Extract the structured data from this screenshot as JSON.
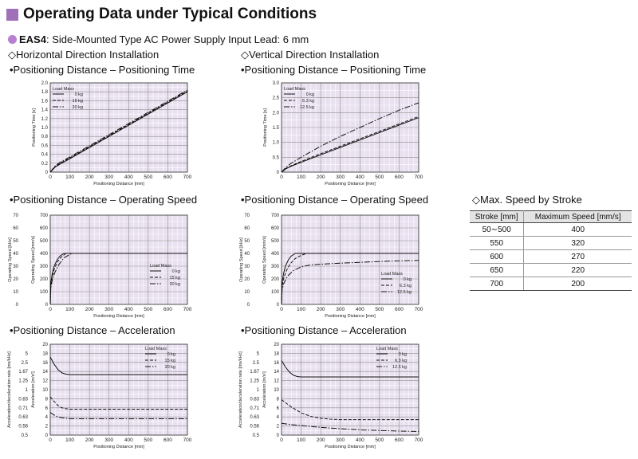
{
  "heading": "Operating Data under Typical Conditions",
  "model": {
    "name": "EAS4",
    "desc": ": Side-Mounted Type  AC Power Supply Input  Lead: 6 mm"
  },
  "sections": {
    "horizontal": "◇Horizontal Direction Installation",
    "vertical": "◇Vertical Direction Installation",
    "maxspeed": "◇Max. Speed by Stroke"
  },
  "subtitles": {
    "time": "•Positioning Distance – Positioning Time",
    "speed": "•Positioning Distance – Operating Speed",
    "accel": "•Positioning Distance – Acceleration"
  },
  "table": {
    "headers": [
      "Stroke [mm]",
      "Maximum Speed [mm/s]"
    ],
    "rows": [
      [
        "50∼500",
        "400"
      ],
      [
        "550",
        "320"
      ],
      [
        "600",
        "270"
      ],
      [
        "650",
        "220"
      ],
      [
        "700",
        "200"
      ]
    ]
  },
  "chart_data": [
    {
      "id": "h-time",
      "type": "line",
      "xlabel": "Positioning Distance [mm]",
      "ylabel": "Positioning Time [s]",
      "xlim": [
        0,
        700
      ],
      "ylim": [
        0,
        2.0
      ],
      "xticks": [
        "0",
        "100",
        "200",
        "300",
        "400",
        "500",
        "600",
        "700"
      ],
      "yticks": [
        "0",
        "0.2",
        "0.4",
        "0.6",
        "0.8",
        "1.0",
        "1.2",
        "1.4",
        "1.6",
        "1.8",
        "2.0"
      ],
      "legend_title": "Load Mass",
      "legend_pos": "top-left",
      "series": [
        {
          "name": "0 kg",
          "style": "solid",
          "x": [
            0,
            25,
            50,
            100,
            200,
            300,
            400,
            500,
            600,
            700
          ],
          "y": [
            0,
            0.11,
            0.18,
            0.3,
            0.55,
            0.8,
            1.05,
            1.3,
            1.55,
            1.8
          ]
        },
        {
          "name": "15 kg",
          "style": "dashed",
          "x": [
            0,
            25,
            50,
            100,
            200,
            300,
            400,
            500,
            600,
            700
          ],
          "y": [
            0,
            0.12,
            0.2,
            0.32,
            0.57,
            0.82,
            1.07,
            1.32,
            1.57,
            1.82
          ]
        },
        {
          "name": "30 kg",
          "style": "dashdot",
          "x": [
            0,
            25,
            50,
            100,
            200,
            300,
            400,
            500,
            600,
            700
          ],
          "y": [
            0,
            0.14,
            0.22,
            0.34,
            0.59,
            0.84,
            1.09,
            1.34,
            1.59,
            1.84
          ]
        }
      ]
    },
    {
      "id": "v-time",
      "type": "line",
      "xlabel": "Positioning Distance [mm]",
      "ylabel": "Positioning Time [s]",
      "xlim": [
        0,
        700
      ],
      "ylim": [
        0,
        3.0
      ],
      "xticks": [
        "0",
        "100",
        "200",
        "300",
        "400",
        "500",
        "600",
        "700"
      ],
      "yticks": [
        "0",
        "0.5",
        "1.0",
        "1.5",
        "2.0",
        "2.5",
        "3.0"
      ],
      "legend_title": "Load Mass",
      "legend_pos": "top-left",
      "series": [
        {
          "name": "0 kg",
          "style": "solid",
          "x": [
            0,
            25,
            50,
            100,
            200,
            300,
            400,
            500,
            600,
            700
          ],
          "y": [
            0,
            0.12,
            0.2,
            0.33,
            0.58,
            0.83,
            1.08,
            1.33,
            1.58,
            1.83
          ]
        },
        {
          "name": "6.3 kg",
          "style": "dashed",
          "x": [
            0,
            25,
            50,
            100,
            200,
            300,
            400,
            500,
            600,
            700
          ],
          "y": [
            0,
            0.13,
            0.22,
            0.36,
            0.62,
            0.87,
            1.12,
            1.37,
            1.62,
            1.87
          ]
        },
        {
          "name": "12.5 kg",
          "style": "dashdot",
          "x": [
            0,
            25,
            50,
            100,
            200,
            300,
            400,
            500,
            600,
            700
          ],
          "y": [
            0,
            0.18,
            0.3,
            0.5,
            0.87,
            1.2,
            1.5,
            1.8,
            2.08,
            2.33
          ]
        }
      ]
    },
    {
      "id": "h-speed",
      "type": "line",
      "xlabel": "Positioning Distance [mm]",
      "ylabel": "Operating Speed [mm/s]",
      "ylabel2": "Operating Speed [kHz]",
      "xlim": [
        0,
        700
      ],
      "ylim": [
        0,
        700
      ],
      "ylim2": [
        0,
        70
      ],
      "xticks": [
        "0",
        "100",
        "200",
        "300",
        "400",
        "500",
        "600",
        "700"
      ],
      "yticks": [
        "0",
        "100",
        "200",
        "300",
        "400",
        "500",
        "600",
        "700"
      ],
      "yticks2": [
        "0",
        "10",
        "20",
        "30",
        "40",
        "50",
        "60",
        "70"
      ],
      "legend_title": "Load Mass",
      "legend_pos": "bottom-right",
      "series": [
        {
          "name": "0 kg",
          "style": "solid",
          "x": [
            0,
            3,
            10,
            20,
            35,
            50,
            70,
            700
          ],
          "y": [
            0,
            170,
            240,
            300,
            350,
            380,
            400,
            400
          ]
        },
        {
          "name": "15 kg",
          "style": "dashed",
          "x": [
            0,
            3,
            10,
            20,
            35,
            55,
            80,
            700
          ],
          "y": [
            0,
            150,
            215,
            275,
            330,
            370,
            400,
            400
          ]
        },
        {
          "name": "30 kg",
          "style": "dashdot",
          "x": [
            0,
            3,
            10,
            25,
            45,
            70,
            110,
            700
          ],
          "y": [
            0,
            130,
            190,
            255,
            315,
            365,
            400,
            400
          ]
        }
      ]
    },
    {
      "id": "v-speed",
      "type": "line",
      "xlabel": "Positioning Distance [mm]",
      "ylabel": "Operating Speed [mm/s]",
      "ylabel2": "Operating Speed [kHz]",
      "xlim": [
        0,
        700
      ],
      "ylim": [
        0,
        700
      ],
      "ylim2": [
        0,
        70
      ],
      "xticks": [
        "0",
        "100",
        "200",
        "300",
        "400",
        "500",
        "600",
        "700"
      ],
      "yticks": [
        "0",
        "100",
        "200",
        "300",
        "400",
        "500",
        "600",
        "700"
      ],
      "yticks2": [
        "0",
        "10",
        "20",
        "30",
        "40",
        "50",
        "60",
        "70"
      ],
      "legend_title": "Load Mass",
      "legend_pos": "bottom-right",
      "series": [
        {
          "name": "0 kg",
          "style": "solid",
          "x": [
            0,
            3,
            10,
            20,
            35,
            50,
            70,
            700
          ],
          "y": [
            0,
            170,
            240,
            300,
            350,
            380,
            400,
            400
          ]
        },
        {
          "name": "6.3 kg",
          "style": "dashed",
          "x": [
            0,
            3,
            10,
            25,
            45,
            70,
            100,
            130,
            700
          ],
          "y": [
            0,
            140,
            200,
            265,
            320,
            360,
            385,
            400,
            400
          ]
        },
        {
          "name": "12.5 kg",
          "style": "dashdot",
          "x": [
            0,
            3,
            10,
            30,
            60,
            100,
            150,
            250,
            400,
            550,
            700
          ],
          "y": [
            0,
            110,
            160,
            220,
            265,
            295,
            310,
            320,
            330,
            340,
            345
          ]
        }
      ]
    },
    {
      "id": "h-accel",
      "type": "line",
      "xlabel": "Positioning Distance [mm]",
      "ylabel": "Acceleration [m/s²]",
      "ylabel2": "Acceleration/deceleration rate [ms/kHz]",
      "xlim": [
        0,
        700
      ],
      "ylim": [
        0,
        20
      ],
      "xticks": [
        "0",
        "100",
        "200",
        "300",
        "400",
        "500",
        "600",
        "700"
      ],
      "yticks": [
        "0",
        "2",
        "4",
        "6",
        "8",
        "10",
        "12",
        "14",
        "16",
        "18",
        "20"
      ],
      "yticks2": [
        "0.5",
        "0.56",
        "0.63",
        "0.71",
        "0.83",
        "1",
        "1.25",
        "1.67",
        "2.5",
        "5",
        ""
      ],
      "legend_title": "Load Mass",
      "legend_pos": "top-right",
      "series": [
        {
          "name": "0 kg",
          "style": "solid",
          "x": [
            0,
            20,
            40,
            60,
            80,
            100,
            700
          ],
          "y": [
            17.2,
            15.6,
            14.4,
            13.7,
            13.4,
            13.3,
            13.3
          ]
        },
        {
          "name": "15 kg",
          "style": "dashed",
          "x": [
            0,
            20,
            40,
            60,
            80,
            100,
            700
          ],
          "y": [
            8.4,
            7.4,
            6.5,
            6.0,
            5.8,
            5.7,
            5.7
          ]
        },
        {
          "name": "30 kg",
          "style": "dashdot",
          "x": [
            0,
            20,
            40,
            60,
            80,
            100,
            700
          ],
          "y": [
            5.0,
            4.4,
            4.0,
            3.8,
            3.7,
            3.6,
            3.6
          ]
        }
      ]
    },
    {
      "id": "v-accel",
      "type": "line",
      "xlabel": "Positioning Distance [mm]",
      "ylabel": "Acceleration [m/s²]",
      "ylabel2": "Acceleration/deceleration rate [ms/kHz]",
      "xlim": [
        0,
        700
      ],
      "ylim": [
        0,
        20
      ],
      "xticks": [
        "0",
        "100",
        "200",
        "300",
        "400",
        "500",
        "600",
        "700"
      ],
      "yticks": [
        "0",
        "2",
        "4",
        "6",
        "8",
        "10",
        "12",
        "14",
        "16",
        "18",
        "20"
      ],
      "yticks2": [
        "0.5",
        "0.56",
        "0.63",
        "0.71",
        "0.83",
        "1",
        "1.25",
        "1.67",
        "2.5",
        "5",
        ""
      ],
      "legend_title": "Load Mass",
      "legend_pos": "top-right",
      "series": [
        {
          "name": "0 kg",
          "style": "solid",
          "x": [
            0,
            20,
            40,
            60,
            80,
            100,
            700
          ],
          "y": [
            16.4,
            15.0,
            13.9,
            13.2,
            12.9,
            12.8,
            12.8
          ]
        },
        {
          "name": "6.3 kg",
          "style": "dashed",
          "x": [
            0,
            25,
            50,
            100,
            150,
            200,
            250,
            300,
            700
          ],
          "y": [
            7.8,
            7.0,
            6.2,
            4.9,
            4.1,
            3.7,
            3.5,
            3.4,
            3.4
          ]
        },
        {
          "name": "12.5 kg",
          "style": "dashdot",
          "x": [
            0,
            50,
            100,
            200,
            300,
            400,
            500,
            600,
            700
          ],
          "y": [
            2.6,
            2.3,
            2.1,
            1.7,
            1.4,
            1.15,
            1.0,
            0.9,
            0.8
          ]
        }
      ]
    }
  ]
}
